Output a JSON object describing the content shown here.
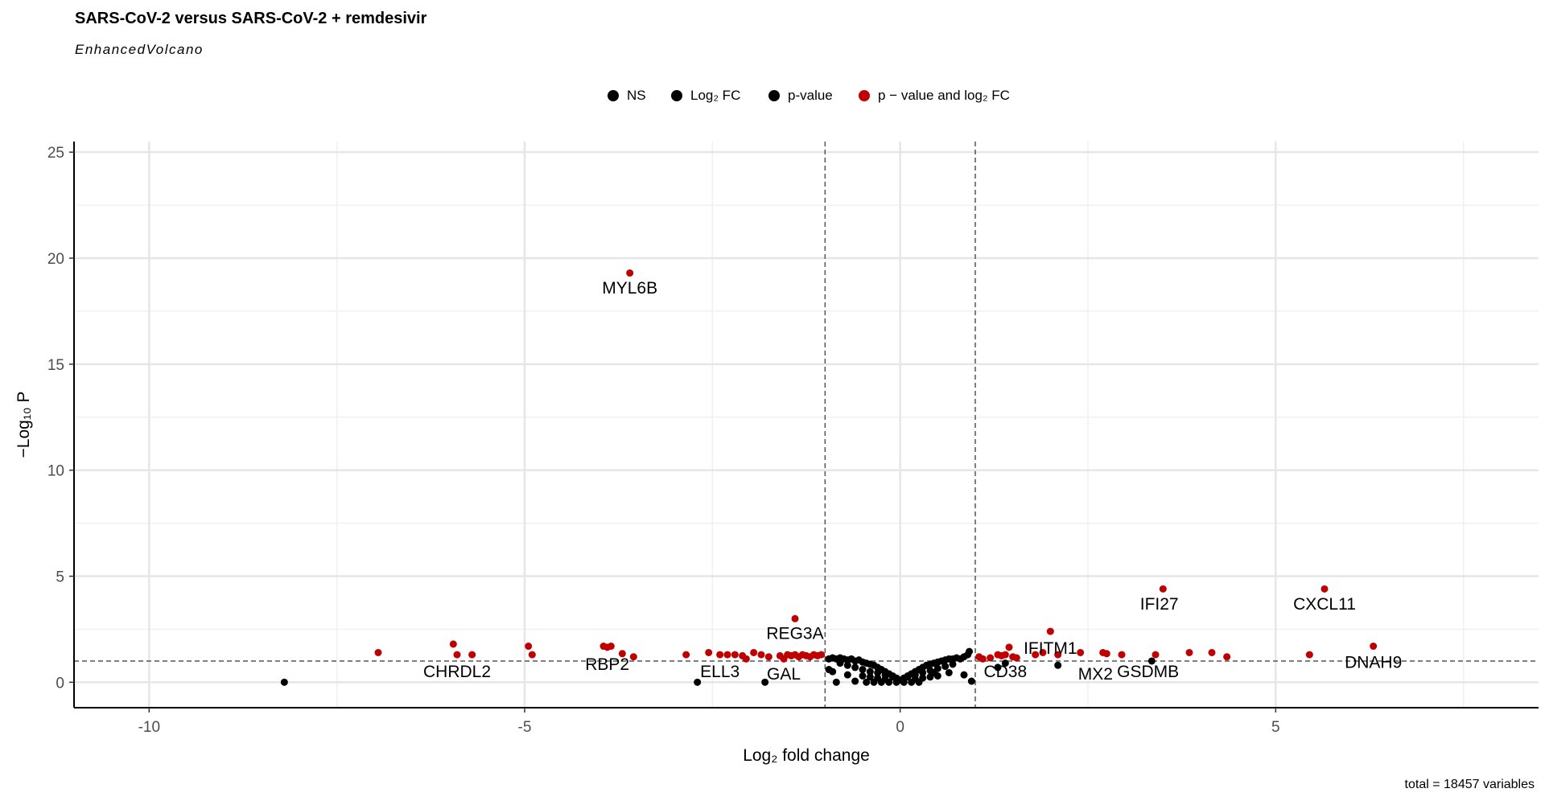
{
  "title": "SARS-CoV-2 versus SARS-CoV-2 + remdesivir",
  "subtitle": "EnhancedVolcano",
  "caption": "total = 18457 variables",
  "legend": [
    {
      "label": "NS",
      "color": "#000000"
    },
    {
      "label": "Log₂ FC",
      "color": "#000000"
    },
    {
      "label": "p-value",
      "color": "#000000"
    },
    {
      "label": "p − value and log₂ FC",
      "color": "#c00000"
    }
  ],
  "chart_data": {
    "type": "scatter",
    "title": "SARS-CoV-2 versus SARS-CoV-2 + remdesivir",
    "subtitle": "EnhancedVolcano",
    "xlabel": "Log₂ fold change",
    "ylabel": "−Log₁₀ P",
    "xlim": [
      -11,
      8.5
    ],
    "ylim": [
      -1.2,
      25.5
    ],
    "xticks": [
      -10,
      -5,
      0,
      5
    ],
    "xtick_labels": [
      "-10",
      "-5",
      "0",
      "5"
    ],
    "yticks": [
      0,
      5,
      10,
      15,
      20,
      25
    ],
    "ytick_labels": [
      "0",
      "5",
      "10",
      "15",
      "20",
      "25"
    ],
    "grid": true,
    "legend_position": "top",
    "cutoffs": {
      "log2fc": [
        -1,
        1
      ],
      "neg_log10_p": 1
    },
    "colors": {
      "ns": "#000000",
      "sig": "#c00000",
      "cutoff_line": "#555555"
    },
    "series": [
      {
        "name": "NS",
        "color": "#000000",
        "points": [
          [
            -8.2,
            0.0
          ],
          [
            -2.7,
            0.0
          ],
          [
            -1.8,
            0.0
          ],
          [
            -0.85,
            0.0
          ],
          [
            -0.6,
            0.05
          ],
          [
            0.95,
            0.05
          ],
          [
            -0.95,
            1.1
          ],
          [
            -0.9,
            1.15
          ],
          [
            -0.85,
            1.1
          ],
          [
            -0.8,
            1.15
          ],
          [
            -0.75,
            1.1
          ],
          [
            -0.7,
            1.05
          ],
          [
            -0.65,
            1.1
          ],
          [
            -0.6,
            1.0
          ],
          [
            -0.55,
            1.05
          ],
          [
            -0.5,
            0.95
          ],
          [
            -0.45,
            0.9
          ],
          [
            -0.4,
            0.85
          ],
          [
            -0.35,
            0.8
          ],
          [
            -0.3,
            0.7
          ],
          [
            -0.25,
            0.6
          ],
          [
            -0.2,
            0.5
          ],
          [
            -0.15,
            0.4
          ],
          [
            -0.1,
            0.3
          ],
          [
            -0.05,
            0.2
          ],
          [
            0.0,
            0.1
          ],
          [
            0.05,
            0.2
          ],
          [
            0.1,
            0.3
          ],
          [
            0.15,
            0.4
          ],
          [
            0.2,
            0.5
          ],
          [
            0.25,
            0.6
          ],
          [
            0.3,
            0.7
          ],
          [
            0.35,
            0.8
          ],
          [
            0.4,
            0.85
          ],
          [
            0.45,
            0.9
          ],
          [
            0.5,
            0.95
          ],
          [
            0.55,
            1.0
          ],
          [
            0.6,
            1.05
          ],
          [
            0.65,
            1.1
          ],
          [
            0.7,
            1.1
          ],
          [
            0.75,
            1.15
          ],
          [
            0.8,
            1.1
          ],
          [
            0.85,
            1.2
          ],
          [
            0.9,
            1.3
          ],
          [
            0.92,
            1.45
          ],
          [
            -0.8,
            0.9
          ],
          [
            -0.7,
            0.8
          ],
          [
            -0.6,
            0.7
          ],
          [
            -0.5,
            0.6
          ],
          [
            -0.4,
            0.5
          ],
          [
            -0.3,
            0.45
          ],
          [
            -0.2,
            0.35
          ],
          [
            -0.1,
            0.25
          ],
          [
            0.1,
            0.25
          ],
          [
            0.2,
            0.35
          ],
          [
            0.3,
            0.45
          ],
          [
            0.4,
            0.55
          ],
          [
            0.5,
            0.65
          ],
          [
            0.6,
            0.75
          ],
          [
            0.7,
            0.85
          ],
          [
            -0.5,
            0.3
          ],
          [
            -0.4,
            0.25
          ],
          [
            -0.3,
            0.2
          ],
          [
            -0.2,
            0.15
          ],
          [
            0.2,
            0.15
          ],
          [
            0.3,
            0.2
          ],
          [
            0.4,
            0.25
          ],
          [
            0.5,
            0.3
          ],
          [
            -0.45,
            0.0
          ],
          [
            -0.35,
            0.0
          ],
          [
            -0.25,
            0.0
          ],
          [
            -0.15,
            0.0
          ],
          [
            -0.05,
            0.0
          ],
          [
            0.05,
            0.0
          ],
          [
            0.15,
            0.0
          ],
          [
            0.25,
            0.0
          ],
          [
            -0.9,
            0.5
          ],
          [
            0.45,
            0.45
          ],
          [
            0.65,
            0.45
          ],
          [
            0.85,
            0.35
          ],
          [
            -0.95,
            0.6
          ],
          [
            -0.7,
            0.35
          ],
          [
            1.3,
            0.7
          ],
          [
            1.4,
            0.9
          ],
          [
            2.1,
            0.8
          ],
          [
            3.35,
            1.0
          ]
        ]
      },
      {
        "name": "p − value and log₂ FC",
        "color": "#c00000",
        "points": [
          [
            -3.6,
            19.3
          ],
          [
            -1.4,
            3.0
          ],
          [
            3.5,
            4.4
          ],
          [
            5.65,
            4.4
          ],
          [
            2.0,
            2.4
          ],
          [
            6.3,
            1.7
          ],
          [
            -6.95,
            1.4
          ],
          [
            -5.95,
            1.8
          ],
          [
            -5.9,
            1.3
          ],
          [
            -5.7,
            1.3
          ],
          [
            -4.95,
            1.7
          ],
          [
            -4.9,
            1.3
          ],
          [
            -3.95,
            1.7
          ],
          [
            -3.9,
            1.65
          ],
          [
            -3.85,
            1.7
          ],
          [
            -3.7,
            1.35
          ],
          [
            -3.55,
            1.2
          ],
          [
            -2.85,
            1.3
          ],
          [
            -2.55,
            1.4
          ],
          [
            -2.4,
            1.3
          ],
          [
            -2.3,
            1.3
          ],
          [
            -2.2,
            1.3
          ],
          [
            -2.1,
            1.25
          ],
          [
            -2.05,
            1.1
          ],
          [
            -1.95,
            1.4
          ],
          [
            -1.85,
            1.3
          ],
          [
            -1.75,
            1.2
          ],
          [
            -1.6,
            1.25
          ],
          [
            -1.55,
            1.1
          ],
          [
            -1.5,
            1.3
          ],
          [
            -1.45,
            1.25
          ],
          [
            -1.4,
            1.3
          ],
          [
            -1.35,
            1.2
          ],
          [
            -1.3,
            1.3
          ],
          [
            -1.25,
            1.25
          ],
          [
            -1.2,
            1.2
          ],
          [
            -1.15,
            1.3
          ],
          [
            -1.1,
            1.25
          ],
          [
            -1.05,
            1.3
          ],
          [
            1.05,
            1.2
          ],
          [
            1.1,
            1.1
          ],
          [
            1.2,
            1.15
          ],
          [
            1.3,
            1.3
          ],
          [
            1.35,
            1.25
          ],
          [
            1.4,
            1.3
          ],
          [
            1.45,
            1.65
          ],
          [
            1.5,
            1.2
          ],
          [
            1.55,
            1.15
          ],
          [
            1.8,
            1.3
          ],
          [
            1.9,
            1.4
          ],
          [
            2.1,
            1.3
          ],
          [
            2.4,
            1.4
          ],
          [
            2.7,
            1.4
          ],
          [
            2.75,
            1.35
          ],
          [
            2.95,
            1.3
          ],
          [
            3.4,
            1.3
          ],
          [
            3.85,
            1.4
          ],
          [
            4.15,
            1.4
          ],
          [
            4.35,
            1.2
          ],
          [
            5.45,
            1.3
          ]
        ]
      }
    ],
    "labels": [
      {
        "text": "MYL6B",
        "x": -3.6,
        "y": 18.6
      },
      {
        "text": "REG3A",
        "x": -1.4,
        "y": 2.3
      },
      {
        "text": "IFI27",
        "x": 3.45,
        "y": 3.7
      },
      {
        "text": "CXCL11",
        "x": 5.65,
        "y": 3.7
      },
      {
        "text": "IFITM1",
        "x": 2.0,
        "y": 1.6
      },
      {
        "text": "DNAH9",
        "x": 6.3,
        "y": 0.95
      },
      {
        "text": "CHRDL2",
        "x": -5.9,
        "y": 0.5
      },
      {
        "text": "RBP2",
        "x": -3.9,
        "y": 0.85
      },
      {
        "text": "ELL3",
        "x": -2.4,
        "y": 0.5
      },
      {
        "text": "GAL",
        "x": -1.55,
        "y": 0.4
      },
      {
        "text": "CD38",
        "x": 1.4,
        "y": 0.5
      },
      {
        "text": "MX2",
        "x": 2.6,
        "y": 0.4
      },
      {
        "text": "GSDMB",
        "x": 3.3,
        "y": 0.5
      }
    ]
  }
}
